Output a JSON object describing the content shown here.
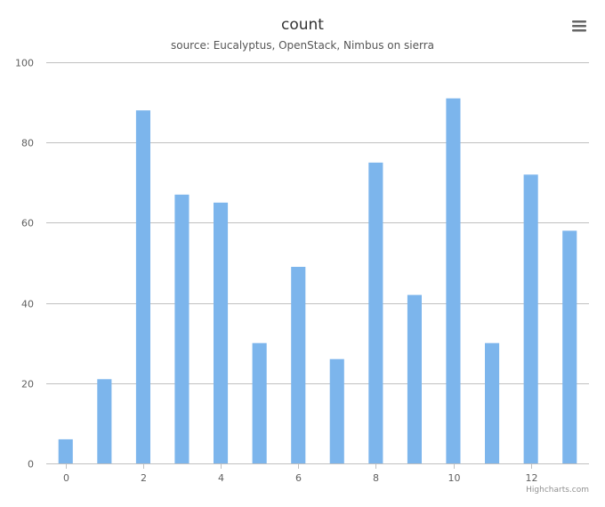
{
  "chart_data": {
    "type": "bar",
    "title": "count",
    "subtitle": "source: Eucalyptus, OpenStack, Nimbus on sierra",
    "x": [
      0,
      1,
      2,
      3,
      4,
      5,
      6,
      7,
      8,
      9,
      10,
      11,
      12,
      13
    ],
    "x_tick_labels": [
      "0",
      "2",
      "4",
      "6",
      "8",
      "10",
      "12"
    ],
    "x_tick_values": [
      0,
      2,
      4,
      6,
      8,
      10,
      12
    ],
    "xlim": [
      -0.5,
      13.5
    ],
    "values": [
      6,
      21,
      88,
      67,
      65,
      30,
      49,
      26,
      75,
      42,
      91,
      30,
      72,
      58
    ],
    "ylim": [
      0,
      100
    ],
    "y_ticks": [
      0,
      20,
      40,
      60,
      80,
      100
    ],
    "y_tick_labels": [
      "0",
      "20",
      "40",
      "60",
      "80",
      "100"
    ],
    "grid": true,
    "legend": "none",
    "bar_color": "#7cb5ec",
    "grid_color": "#c0c0c0"
  },
  "credits": "Highcharts.com",
  "menu": {
    "icon": "hamburger-menu-icon"
  }
}
